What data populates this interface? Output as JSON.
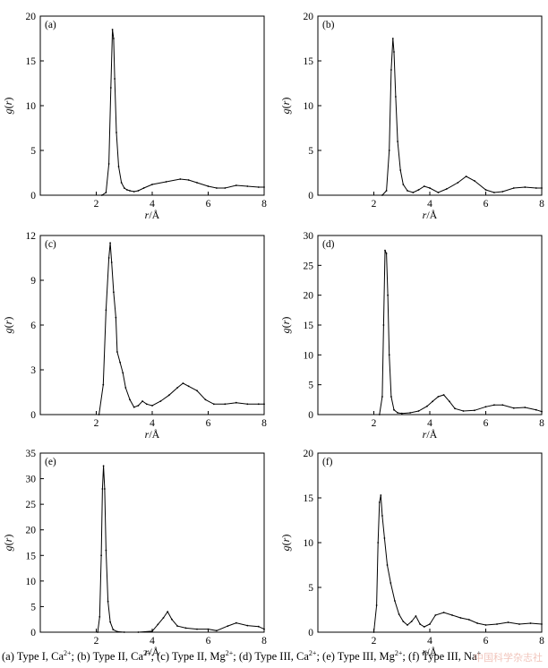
{
  "chart_data": [
    {
      "type": "line",
      "panel_label": "(a)",
      "xlabel": "r/Å",
      "ylabel": "g(r)",
      "xlim": [
        0,
        8
      ],
      "ylim": [
        0,
        20
      ],
      "xticks": [
        2,
        4,
        6,
        8
      ],
      "yticks": [
        0,
        5,
        10,
        15,
        20
      ],
      "x": [
        2.2,
        2.35,
        2.45,
        2.52,
        2.58,
        2.62,
        2.66,
        2.72,
        2.8,
        2.9,
        3.0,
        3.1,
        3.2,
        3.35,
        3.5,
        3.7,
        4.0,
        4.5,
        5.0,
        5.3,
        5.6,
        6.0,
        6.3,
        6.6,
        7.0,
        7.4,
        7.8,
        8.0
      ],
      "y": [
        0,
        0.3,
        3.5,
        12,
        18.5,
        17.5,
        13,
        7,
        3.2,
        1.4,
        0.8,
        0.6,
        0.5,
        0.4,
        0.5,
        0.8,
        1.2,
        1.5,
        1.8,
        1.7,
        1.4,
        1.0,
        0.8,
        0.8,
        1.1,
        1.0,
        0.9,
        0.9
      ]
    },
    {
      "type": "line",
      "panel_label": "(b)",
      "xlabel": "r/Å",
      "ylabel": "g(r)",
      "xlim": [
        0,
        8
      ],
      "ylim": [
        0,
        20
      ],
      "xticks": [
        2,
        4,
        6,
        8
      ],
      "yticks": [
        0,
        5,
        10,
        15,
        20
      ],
      "x": [
        2.3,
        2.45,
        2.55,
        2.62,
        2.68,
        2.72,
        2.78,
        2.85,
        2.95,
        3.05,
        3.2,
        3.4,
        3.6,
        3.8,
        4.0,
        4.3,
        4.6,
        5.0,
        5.3,
        5.6,
        6.0,
        6.3,
        6.6,
        7.0,
        7.4,
        7.8,
        8.0
      ],
      "y": [
        0,
        0.5,
        5,
        14,
        17.5,
        16,
        11,
        6,
        2.8,
        1.2,
        0.5,
        0.3,
        0.6,
        1.0,
        0.8,
        0.3,
        0.7,
        1.4,
        2.1,
        1.6,
        0.6,
        0.3,
        0.4,
        0.8,
        0.9,
        0.8,
        0.8
      ]
    },
    {
      "type": "line",
      "panel_label": "(c)",
      "xlabel": "r/Å",
      "ylabel": "g(r)",
      "xlim": [
        0,
        8
      ],
      "ylim": [
        0,
        12
      ],
      "xticks": [
        2,
        4,
        6,
        8
      ],
      "yticks": [
        0,
        3,
        6,
        9,
        12
      ],
      "x": [
        2.1,
        2.25,
        2.35,
        2.45,
        2.5,
        2.55,
        2.62,
        2.7,
        2.75,
        2.85,
        2.95,
        3.05,
        3.2,
        3.35,
        3.5,
        3.65,
        3.8,
        4.0,
        4.3,
        4.6,
        4.9,
        5.1,
        5.3,
        5.6,
        5.9,
        6.2,
        6.6,
        7.0,
        7.4,
        7.8,
        8.0
      ],
      "y": [
        0,
        2,
        7,
        10.5,
        11.5,
        10.2,
        8.2,
        6.5,
        4.2,
        3.5,
        2.8,
        1.8,
        1.0,
        0.5,
        0.6,
        0.9,
        0.7,
        0.6,
        0.9,
        1.3,
        1.8,
        2.1,
        1.9,
        1.6,
        1.0,
        0.7,
        0.7,
        0.8,
        0.7,
        0.7,
        0.7
      ]
    },
    {
      "type": "line",
      "panel_label": "(d)",
      "xlabel": "r/Å",
      "ylabel": "g(r)",
      "xlim": [
        0,
        8
      ],
      "ylim": [
        0,
        30
      ],
      "xticks": [
        2,
        4,
        6,
        8
      ],
      "yticks": [
        0,
        5,
        10,
        15,
        20,
        25,
        30
      ],
      "x": [
        2.2,
        2.3,
        2.35,
        2.4,
        2.45,
        2.5,
        2.55,
        2.62,
        2.72,
        2.85,
        3.0,
        3.3,
        3.6,
        3.9,
        4.1,
        4.3,
        4.5,
        4.7,
        4.9,
        5.2,
        5.6,
        6.0,
        6.3,
        6.6,
        7.0,
        7.4,
        7.8,
        8.0
      ],
      "y": [
        0,
        3,
        15,
        27.5,
        27,
        20,
        10,
        3,
        0.8,
        0.3,
        0.2,
        0.3,
        0.6,
        1.4,
        2.2,
        3.0,
        3.3,
        2.2,
        1.0,
        0.6,
        0.7,
        1.3,
        1.6,
        1.6,
        1.1,
        1.2,
        0.8,
        0.5
      ]
    },
    {
      "type": "line",
      "panel_label": "(e)",
      "xlabel": "r/Å",
      "ylabel": "g(r)",
      "xlim": [
        0,
        8
      ],
      "ylim": [
        0,
        35
      ],
      "xticks": [
        2,
        4,
        6,
        8
      ],
      "yticks": [
        0,
        5,
        10,
        15,
        20,
        25,
        30,
        35
      ],
      "x": [
        2.05,
        2.12,
        2.18,
        2.22,
        2.26,
        2.3,
        2.35,
        2.42,
        2.5,
        2.6,
        2.75,
        3.0,
        3.5,
        4.0,
        4.2,
        4.4,
        4.55,
        4.7,
        4.9,
        5.2,
        5.6,
        6.0,
        6.3,
        6.7,
        7.0,
        7.4,
        7.8,
        8.0
      ],
      "y": [
        0,
        3,
        15,
        28,
        32.5,
        28,
        16,
        6,
        2,
        0.5,
        0.1,
        0,
        0,
        0.2,
        1.5,
        2.8,
        4.0,
        2.5,
        1.2,
        0.8,
        0.6,
        0.6,
        0.3,
        1.2,
        1.8,
        1.3,
        1.1,
        0.6
      ]
    },
    {
      "type": "line",
      "panel_label": "(f)",
      "xlabel": "r/Å",
      "ylabel": "g(r)",
      "xlim": [
        0,
        8
      ],
      "ylim": [
        0,
        20
      ],
      "xticks": [
        2,
        4,
        6,
        8
      ],
      "yticks": [
        0,
        5,
        10,
        15,
        20
      ],
      "x": [
        2.0,
        2.1,
        2.15,
        2.2,
        2.25,
        2.3,
        2.38,
        2.48,
        2.6,
        2.75,
        2.9,
        3.05,
        3.2,
        3.35,
        3.5,
        3.65,
        3.8,
        4.0,
        4.2,
        4.5,
        4.8,
        5.1,
        5.4,
        5.7,
        6.0,
        6.4,
        6.8,
        7.2,
        7.6,
        8.0
      ],
      "y": [
        0,
        3,
        10,
        14.5,
        15.3,
        13,
        10.5,
        7.5,
        5.5,
        3.5,
        2.0,
        1.2,
        0.8,
        1.2,
        1.8,
        0.9,
        0.6,
        0.9,
        1.9,
        2.2,
        1.9,
        1.6,
        1.4,
        1.0,
        0.8,
        0.9,
        1.1,
        0.9,
        1.0,
        0.9
      ]
    }
  ],
  "caption": {
    "a_text": "(a) Type I, Ca",
    "a_sup": "2+",
    "b_text": "; (b) Type  II, Ca",
    "b_sup": "2+",
    "c_text": "; (c) Type II, Mg",
    "c_sup": "2+",
    "d_text": "; (d) Type III, Ca",
    "d_sup": "2+",
    "e_text": "; (e) Type III, Mg",
    "e_sup": "2+",
    "f_text": "; (f) Type III, Na",
    "f_sup": "+"
  },
  "watermark": "中国科学杂志社"
}
